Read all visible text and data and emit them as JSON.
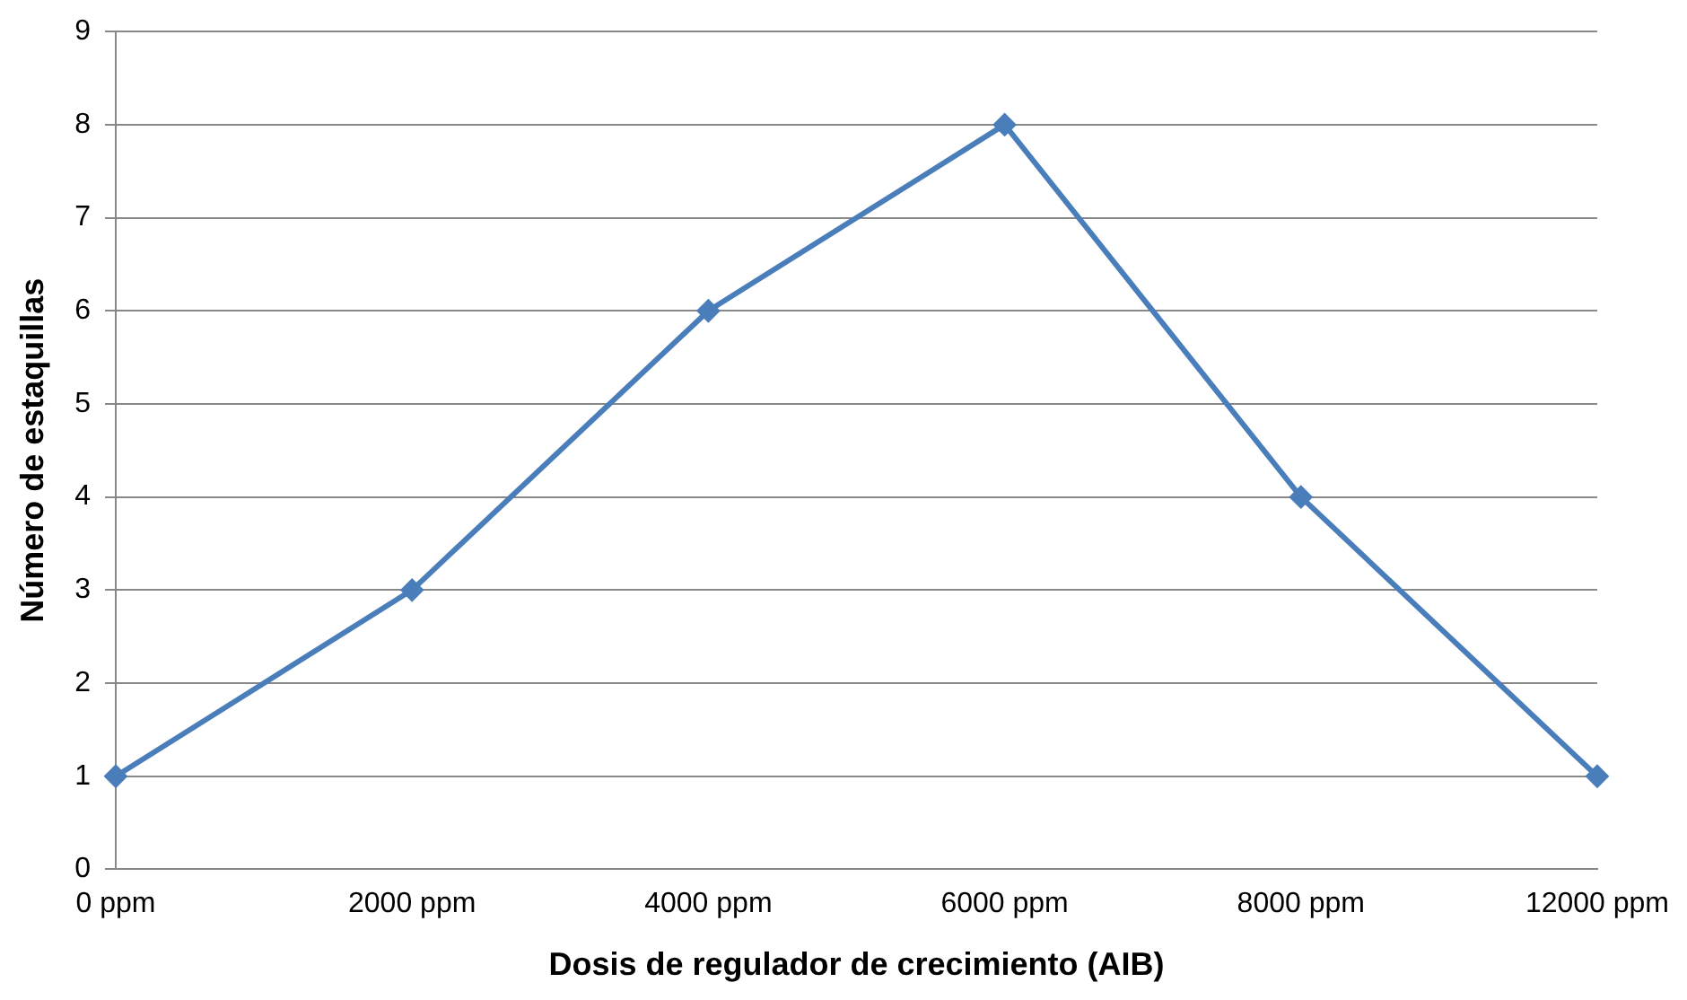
{
  "chart_data": {
    "type": "line",
    "xlabel": "Dosis de regulador de crecimiento (AIB)",
    "ylabel": "Número de estaquillas",
    "categories": [
      "0 ppm",
      "2000 ppm",
      "4000 ppm",
      "6000 ppm",
      "8000 ppm",
      "12000 ppm"
    ],
    "series": [
      {
        "color": "#4a7ebb",
        "values": [
          1,
          3,
          6,
          8,
          4,
          1
        ]
      }
    ],
    "ylim": [
      0,
      9
    ],
    "yticks": [
      0,
      1,
      2,
      3,
      4,
      5,
      6,
      7,
      8,
      9
    ],
    "grid": "y",
    "legend": false,
    "marker": "diamond",
    "line_style": "solid"
  }
}
